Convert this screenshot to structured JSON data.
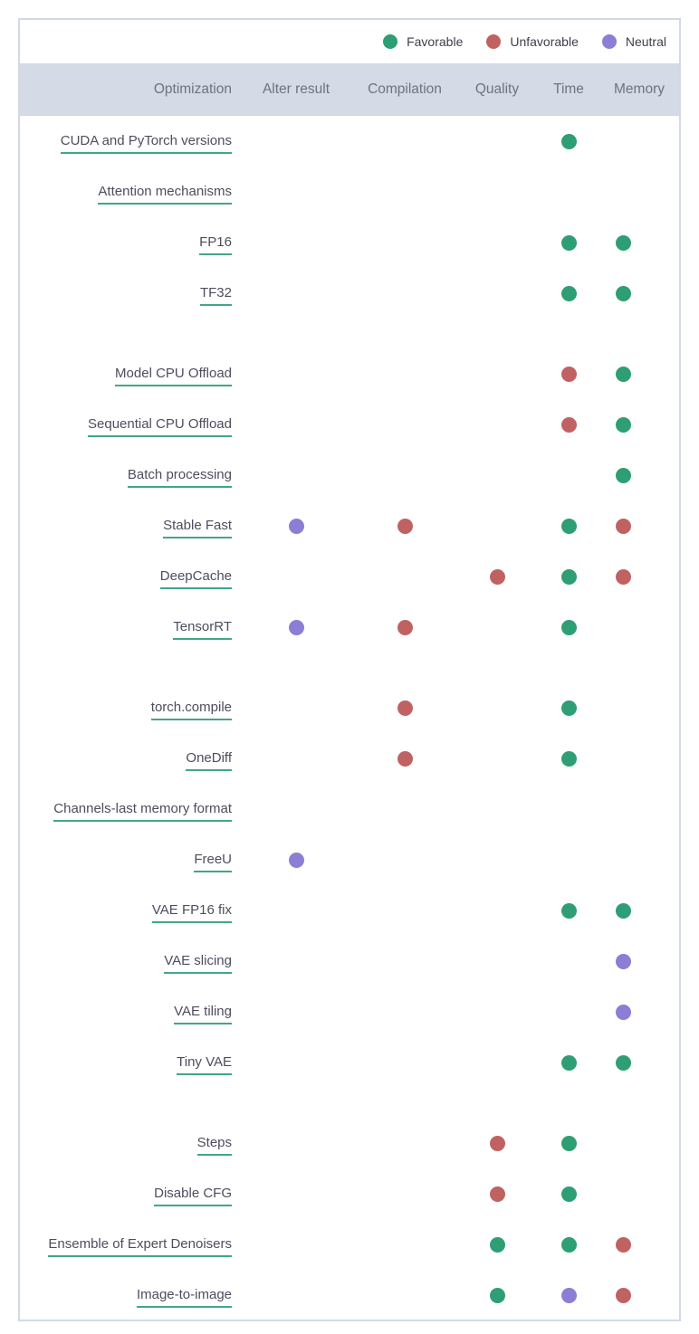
{
  "legend": {
    "items": [
      {
        "label": "Favorable",
        "status": "favorable"
      },
      {
        "label": "Unfavorable",
        "status": "unfavorable"
      },
      {
        "label": "Neutral",
        "status": "neutral"
      }
    ]
  },
  "chart_data": {
    "type": "table",
    "title": "Optimization techniques comparison matrix",
    "columns": [
      "Optimization",
      "Alter result",
      "Compilation",
      "Quality",
      "Time",
      "Memory"
    ],
    "legend_position": "top-right",
    "status_colors": {
      "favorable": "#2e9e74",
      "unfavorable": "#c06262",
      "neutral": "#8c7ed5"
    },
    "rows": [
      {
        "label": "CUDA and PyTorch versions",
        "alter_result": null,
        "compilation": null,
        "quality": null,
        "time": "favorable",
        "memory": null
      },
      {
        "label": "Attention mechanisms",
        "alter_result": null,
        "compilation": null,
        "quality": null,
        "time": null,
        "memory": null
      },
      {
        "label": "FP16",
        "alter_result": null,
        "compilation": null,
        "quality": null,
        "time": "favorable",
        "memory": "favorable"
      },
      {
        "label": "TF32",
        "alter_result": null,
        "compilation": null,
        "quality": null,
        "time": "favorable",
        "memory": "favorable"
      },
      {
        "spacer": true
      },
      {
        "label": "Model CPU Offload",
        "alter_result": null,
        "compilation": null,
        "quality": null,
        "time": "unfavorable",
        "memory": "favorable"
      },
      {
        "label": "Sequential CPU Offload",
        "alter_result": null,
        "compilation": null,
        "quality": null,
        "time": "unfavorable",
        "memory": "favorable"
      },
      {
        "label": "Batch processing",
        "alter_result": null,
        "compilation": null,
        "quality": null,
        "time": null,
        "memory": "favorable"
      },
      {
        "label": "Stable Fast",
        "alter_result": "neutral",
        "compilation": "unfavorable",
        "quality": null,
        "time": "favorable",
        "memory": "unfavorable"
      },
      {
        "label": "DeepCache",
        "alter_result": null,
        "compilation": null,
        "quality": "unfavorable",
        "time": "favorable",
        "memory": "unfavorable"
      },
      {
        "label": "TensorRT",
        "alter_result": "neutral",
        "compilation": "unfavorable",
        "quality": null,
        "time": "favorable",
        "memory": null
      },
      {
        "spacer": true
      },
      {
        "label": "torch.compile",
        "alter_result": null,
        "compilation": "unfavorable",
        "quality": null,
        "time": "favorable",
        "memory": null
      },
      {
        "label": "OneDiff",
        "alter_result": null,
        "compilation": "unfavorable",
        "quality": null,
        "time": "favorable",
        "memory": null
      },
      {
        "label": "Channels-last memory format",
        "alter_result": null,
        "compilation": null,
        "quality": null,
        "time": null,
        "memory": null
      },
      {
        "label": "FreeU",
        "alter_result": "neutral",
        "compilation": null,
        "quality": null,
        "time": null,
        "memory": null
      },
      {
        "label": "VAE FP16 fix",
        "alter_result": null,
        "compilation": null,
        "quality": null,
        "time": "favorable",
        "memory": "favorable"
      },
      {
        "label": "VAE slicing",
        "alter_result": null,
        "compilation": null,
        "quality": null,
        "time": null,
        "memory": "neutral"
      },
      {
        "label": "VAE tiling",
        "alter_result": null,
        "compilation": null,
        "quality": null,
        "time": null,
        "memory": "neutral"
      },
      {
        "label": "Tiny VAE",
        "alter_result": null,
        "compilation": null,
        "quality": null,
        "time": "favorable",
        "memory": "favorable"
      },
      {
        "spacer": true
      },
      {
        "label": "Steps",
        "alter_result": null,
        "compilation": null,
        "quality": "unfavorable",
        "time": "favorable",
        "memory": null
      },
      {
        "label": "Disable CFG",
        "alter_result": null,
        "compilation": null,
        "quality": "unfavorable",
        "time": "favorable",
        "memory": null
      },
      {
        "label": "Ensemble of Expert Denoisers",
        "alter_result": null,
        "compilation": null,
        "quality": "favorable",
        "time": "favorable",
        "memory": "unfavorable"
      },
      {
        "label": "Image-to-image",
        "alter_result": null,
        "compilation": null,
        "quality": "favorable",
        "time": "neutral",
        "memory": "unfavorable"
      }
    ]
  }
}
